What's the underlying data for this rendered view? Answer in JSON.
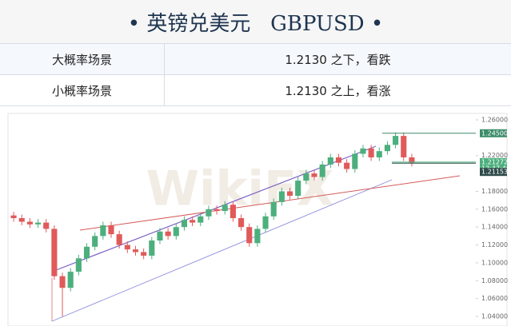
{
  "header": {
    "title": "• 英镑兑美元   GBPUSD •"
  },
  "table": {
    "rows": [
      [
        "大概率场景",
        "1.2130 之下，看跌"
      ],
      [
        "小概率场景",
        "1.2130 之上，看涨"
      ]
    ]
  },
  "chart_data": {
    "type": "candlestick",
    "watermark": "WikiFX",
    "ylim": [
      1.04,
      1.26
    ],
    "yticks": [
      {
        "value": 1.26,
        "label": "1.26000"
      },
      {
        "value": 1.22,
        "label": "1.22000"
      },
      {
        "value": 1.18,
        "label": "1.18000"
      },
      {
        "value": 1.16,
        "label": "1.16000"
      },
      {
        "value": 1.14,
        "label": "1.14000"
      },
      {
        "value": 1.12,
        "label": "1.12000"
      },
      {
        "value": 1.1,
        "label": "1.10000"
      },
      {
        "value": 1.08,
        "label": "1.08000"
      },
      {
        "value": 1.06,
        "label": "1.06000"
      },
      {
        "value": 1.04,
        "label": "1.04000"
      }
    ],
    "price_tags": [
      {
        "value": 1.245,
        "label": "1.24500",
        "color": "#3d8c6a"
      },
      {
        "value": 1.21272,
        "label": "1.21272",
        "time": "13:47:40",
        "color": "#4caf7d"
      },
      {
        "value": 1.21153,
        "label": "1.21153",
        "color": "#2f4a4a"
      }
    ],
    "up_color": "#4caf7d",
    "down_color": "#e05a5a",
    "open": [
      1.153,
      1.15,
      1.146,
      1.143,
      1.145,
      1.138,
      1.085,
      1.072,
      1.09,
      1.105,
      1.118,
      1.13,
      1.142,
      1.132,
      1.12,
      1.115,
      1.112,
      1.108,
      1.125,
      1.135,
      1.13,
      1.14,
      1.148,
      1.145,
      1.152,
      1.16,
      1.158,
      1.165,
      1.15,
      1.14,
      1.122,
      1.138,
      1.152,
      1.168,
      1.18,
      1.175,
      1.192,
      1.2,
      1.196,
      1.21,
      1.218,
      1.212,
      1.205,
      1.222,
      1.228,
      1.218,
      1.225,
      1.232,
      1.242,
      1.218
    ],
    "high": [
      1.157,
      1.154,
      1.15,
      1.149,
      1.149,
      1.142,
      1.089,
      1.094,
      1.109,
      1.122,
      1.134,
      1.146,
      1.146,
      1.136,
      1.124,
      1.119,
      1.116,
      1.129,
      1.139,
      1.139,
      1.144,
      1.152,
      1.152,
      1.156,
      1.164,
      1.164,
      1.169,
      1.169,
      1.154,
      1.144,
      1.142,
      1.156,
      1.172,
      1.184,
      1.184,
      1.196,
      1.204,
      1.204,
      1.214,
      1.222,
      1.222,
      1.216,
      1.226,
      1.232,
      1.232,
      1.229,
      1.236,
      1.246,
      1.246,
      1.222
    ],
    "low": [
      1.146,
      1.142,
      1.139,
      1.139,
      1.134,
      1.081,
      1.04,
      1.068,
      1.086,
      1.101,
      1.114,
      1.126,
      1.128,
      1.116,
      1.111,
      1.108,
      1.104,
      1.104,
      1.121,
      1.126,
      1.126,
      1.136,
      1.141,
      1.141,
      1.148,
      1.154,
      1.154,
      1.146,
      1.136,
      1.118,
      1.118,
      1.134,
      1.148,
      1.164,
      1.171,
      1.171,
      1.188,
      1.192,
      1.192,
      1.206,
      1.208,
      1.201,
      1.201,
      1.218,
      1.214,
      1.214,
      1.221,
      1.228,
      1.214,
      1.208
    ],
    "close": [
      1.15,
      1.146,
      1.143,
      1.145,
      1.138,
      1.085,
      1.072,
      1.09,
      1.105,
      1.118,
      1.13,
      1.142,
      1.132,
      1.12,
      1.115,
      1.112,
      1.108,
      1.125,
      1.135,
      1.13,
      1.14,
      1.148,
      1.145,
      1.152,
      1.16,
      1.158,
      1.165,
      1.15,
      1.14,
      1.122,
      1.138,
      1.152,
      1.168,
      1.18,
      1.175,
      1.192,
      1.2,
      1.196,
      1.21,
      1.218,
      1.212,
      1.205,
      1.222,
      1.228,
      1.218,
      1.225,
      1.232,
      1.242,
      1.218,
      1.212
    ]
  }
}
